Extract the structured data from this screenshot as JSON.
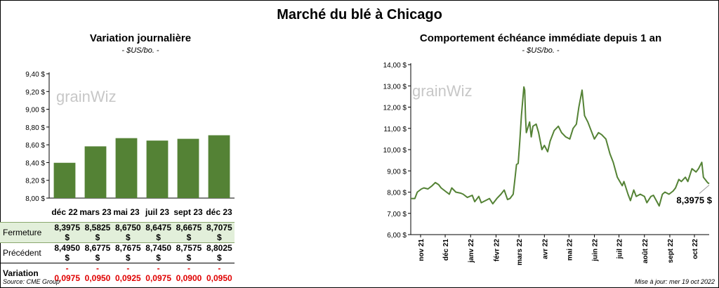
{
  "title": "Marché du blé à Chicago",
  "source": "Source: CME Group",
  "updated": "Mise à jour: mer 19 oct 2022",
  "watermark": "grainWiz",
  "colors": {
    "bar": "#548235",
    "line": "#548235",
    "fermeture_bg": "#e2efda",
    "negative": "#e00000"
  },
  "table": {
    "row_labels": {
      "fermeture": "Fermeture",
      "precedent": "Précédent",
      "variation": "Variation"
    },
    "fermeture": [
      "8,3975  $",
      "8,5825  $",
      "8,6750  $",
      "8,6475  $",
      "8,6675  $",
      "8,7075  $"
    ],
    "precedent": [
      "8,4950  $",
      "8,6775  $",
      "8,7675  $",
      "8,7450  $",
      "8,7575  $",
      "8,8025  $"
    ],
    "variation": [
      "- 0,0975",
      "- 0,0950",
      "- 0,0925",
      "- 0,0975",
      "- 0,0900",
      "- 0,0950"
    ]
  },
  "chart_data": [
    {
      "type": "bar",
      "title": "Variation  journalière",
      "subtitle": "- $US/bo. -",
      "categories": [
        "déc 22",
        "mars 23",
        "mai 23",
        "juil 23",
        "sept 23",
        "déc 23"
      ],
      "values": [
        8.3975,
        8.5825,
        8.675,
        8.6475,
        8.6675,
        8.7075
      ],
      "ylim": [
        8.0,
        9.4
      ],
      "yticks": [
        "8,00 $",
        "8,20 $",
        "8,40 $",
        "8,60 $",
        "8,80 $",
        "9,00 $",
        "9,20 $",
        "9,40 $"
      ],
      "grid": false
    },
    {
      "type": "line",
      "title": "Comportement  échéance immédiate depuis 1 an",
      "subtitle": "- $US/bo. -",
      "ylim": [
        6.0,
        14.0
      ],
      "yticks": [
        "6,00 $",
        "7,00 $",
        "8,00 $",
        "9,00 $",
        "10,00 $",
        "11,00 $",
        "12,00 $",
        "13,00 $",
        "14,00 $"
      ],
      "xlim": [
        "2021-10-20",
        "2022-10-19"
      ],
      "xtick_dates": [
        "2021-11-01",
        "2021-12-01",
        "2022-01-01",
        "2022-02-01",
        "2022-03-01",
        "2022-04-01",
        "2022-05-01",
        "2022-06-01",
        "2022-07-01",
        "2022-08-01",
        "2022-09-01",
        "2022-10-01"
      ],
      "xtick_labels": [
        "nov 21",
        "déc 21",
        "janv 22",
        "févr 22",
        "mars 22",
        "avr 22",
        "mai 22",
        "juin 22",
        "juil 22",
        "août 22",
        "sept 22",
        "oct 22"
      ],
      "last_label": "8,3975 $",
      "grid": false,
      "points": [
        [
          "2021-10-20",
          7.7
        ],
        [
          "2021-10-25",
          7.7
        ],
        [
          "2021-10-28",
          8.0
        ],
        [
          "2021-11-02",
          8.15
        ],
        [
          "2021-11-05",
          8.2
        ],
        [
          "2021-11-10",
          8.15
        ],
        [
          "2021-11-15",
          8.3
        ],
        [
          "2021-11-19",
          8.45
        ],
        [
          "2021-11-23",
          8.35
        ],
        [
          "2021-11-26",
          8.2
        ],
        [
          "2021-12-01",
          8.05
        ],
        [
          "2021-12-06",
          7.9
        ],
        [
          "2021-12-09",
          8.2
        ],
        [
          "2021-12-14",
          8.0
        ],
        [
          "2021-12-20",
          7.95
        ],
        [
          "2021-12-23",
          7.9
        ],
        [
          "2021-12-28",
          7.75
        ],
        [
          "2022-01-03",
          7.85
        ],
        [
          "2022-01-06",
          7.55
        ],
        [
          "2022-01-11",
          7.8
        ],
        [
          "2022-01-14",
          7.5
        ],
        [
          "2022-01-19",
          7.6
        ],
        [
          "2022-01-24",
          7.7
        ],
        [
          "2022-01-28",
          7.45
        ],
        [
          "2022-02-02",
          7.7
        ],
        [
          "2022-02-07",
          7.9
        ],
        [
          "2022-02-11",
          8.1
        ],
        [
          "2022-02-15",
          7.65
        ],
        [
          "2022-02-18",
          7.7
        ],
        [
          "2022-02-22",
          7.9
        ],
        [
          "2022-02-24",
          8.6
        ],
        [
          "2022-02-26",
          9.3
        ],
        [
          "2022-02-28",
          9.35
        ],
        [
          "2022-03-02",
          10.4
        ],
        [
          "2022-03-04",
          11.6
        ],
        [
          "2022-03-07",
          12.95
        ],
        [
          "2022-03-08",
          12.8
        ],
        [
          "2022-03-09",
          11.5
        ],
        [
          "2022-03-10",
          10.8
        ],
        [
          "2022-03-14",
          11.3
        ],
        [
          "2022-03-16",
          10.6
        ],
        [
          "2022-03-18",
          11.1
        ],
        [
          "2022-03-22",
          11.2
        ],
        [
          "2022-03-25",
          10.8
        ],
        [
          "2022-03-29",
          10.0
        ],
        [
          "2022-04-01",
          10.2
        ],
        [
          "2022-04-05",
          9.9
        ],
        [
          "2022-04-08",
          10.4
        ],
        [
          "2022-04-13",
          10.9
        ],
        [
          "2022-04-18",
          11.1
        ],
        [
          "2022-04-22",
          10.8
        ],
        [
          "2022-04-27",
          10.6
        ],
        [
          "2022-05-02",
          10.5
        ],
        [
          "2022-05-06",
          11.0
        ],
        [
          "2022-05-10",
          11.2
        ],
        [
          "2022-05-13",
          12.0
        ],
        [
          "2022-05-17",
          12.8
        ],
        [
          "2022-05-20",
          11.6
        ],
        [
          "2022-05-24",
          11.3
        ],
        [
          "2022-05-27",
          11.0
        ],
        [
          "2022-06-01",
          10.5
        ],
        [
          "2022-06-06",
          10.8
        ],
        [
          "2022-06-10",
          10.7
        ],
        [
          "2022-06-15",
          10.5
        ],
        [
          "2022-06-20",
          9.8
        ],
        [
          "2022-06-24",
          9.4
        ],
        [
          "2022-06-29",
          8.7
        ],
        [
          "2022-07-05",
          8.3
        ],
        [
          "2022-07-07",
          8.5
        ],
        [
          "2022-07-12",
          7.9
        ],
        [
          "2022-07-15",
          7.6
        ],
        [
          "2022-07-19",
          8.1
        ],
        [
          "2022-07-22",
          7.8
        ],
        [
          "2022-07-27",
          7.9
        ],
        [
          "2022-08-01",
          7.8
        ],
        [
          "2022-08-04",
          7.5
        ],
        [
          "2022-08-09",
          7.8
        ],
        [
          "2022-08-12",
          7.85
        ],
        [
          "2022-08-17",
          7.5
        ],
        [
          "2022-08-19",
          7.35
        ],
        [
          "2022-08-23",
          7.9
        ],
        [
          "2022-08-26",
          8.0
        ],
        [
          "2022-08-31",
          7.9
        ],
        [
          "2022-09-05",
          8.05
        ],
        [
          "2022-09-08",
          8.2
        ],
        [
          "2022-09-12",
          8.6
        ],
        [
          "2022-09-15",
          8.5
        ],
        [
          "2022-09-20",
          8.7
        ],
        [
          "2022-09-23",
          8.5
        ],
        [
          "2022-09-28",
          9.1
        ],
        [
          "2022-10-03",
          8.95
        ],
        [
          "2022-10-06",
          9.1
        ],
        [
          "2022-10-10",
          9.4
        ],
        [
          "2022-10-12",
          8.7
        ],
        [
          "2022-10-14",
          8.6
        ],
        [
          "2022-10-17",
          8.45
        ],
        [
          "2022-10-19",
          8.3975
        ]
      ]
    }
  ]
}
